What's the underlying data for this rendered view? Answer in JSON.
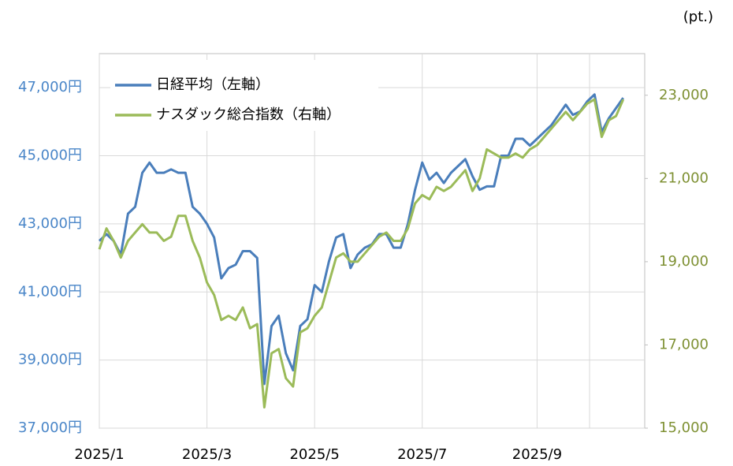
{
  "chart_data": {
    "type": "line",
    "y2label": "(pt.)",
    "categories": [
      "2025/1",
      null,
      null,
      null,
      null,
      null,
      null,
      null,
      null,
      null,
      null,
      null,
      null,
      null,
      null,
      "2025/3",
      null,
      null,
      null,
      null,
      null,
      null,
      null,
      null,
      null,
      null,
      null,
      null,
      null,
      null,
      "2025/5",
      null,
      null,
      null,
      null,
      null,
      null,
      null,
      null,
      null,
      null,
      null,
      null,
      null,
      null,
      "2025/7",
      null,
      null,
      null,
      null,
      null,
      null,
      null,
      null,
      null,
      null,
      null,
      null,
      null,
      null,
      null,
      "2025/9",
      null,
      null,
      null,
      null,
      null,
      null,
      null,
      null,
      null,
      null,
      null,
      null
    ],
    "series": [
      {
        "name": "日経平均（左軸）",
        "color": "#4a7ebb",
        "axis": "y",
        "values": [
          42500,
          42700,
          42500,
          42100,
          43300,
          43500,
          44500,
          44800,
          44500,
          44500,
          44600,
          44500,
          44500,
          43500,
          43300,
          43000,
          42600,
          41400,
          41700,
          41800,
          42200,
          42200,
          42000,
          38300,
          40000,
          40300,
          39200,
          38700,
          40000,
          40200,
          41200,
          41000,
          41900,
          42600,
          42700,
          41700,
          42100,
          42300,
          42400,
          42700,
          42700,
          42300,
          42300,
          43000,
          44000,
          44800,
          44300,
          44500,
          44200,
          44500,
          44700,
          44900,
          44400,
          44000,
          44100,
          44100,
          45000,
          45000,
          45500,
          45500,
          45300,
          45500,
          45700,
          45900,
          46200,
          46500,
          46200,
          46300,
          46600,
          46800,
          45700,
          46100,
          46400,
          46700
        ]
      },
      {
        "name": "ナスダック総合指数（右軸）",
        "color": "#9bbb59",
        "axis": "y2",
        "values": [
          19300,
          19800,
          19500,
          19100,
          19500,
          19700,
          19900,
          19700,
          19700,
          19500,
          19600,
          20100,
          20100,
          19500,
          19100,
          18500,
          18200,
          17600,
          17700,
          17600,
          17900,
          17400,
          17500,
          15500,
          16800,
          16900,
          16200,
          16000,
          17300,
          17400,
          17700,
          17900,
          18500,
          19100,
          19200,
          19000,
          19000,
          19200,
          19400,
          19600,
          19700,
          19500,
          19500,
          19800,
          20400,
          20600,
          20500,
          20800,
          20700,
          20800,
          21000,
          21200,
          20700,
          21000,
          21700,
          21600,
          21500,
          21500,
          21600,
          21500,
          21700,
          21800,
          22000,
          22200,
          22400,
          22600,
          22400,
          22600,
          22800,
          22900,
          22000,
          22400,
          22500,
          22900
        ]
      }
    ],
    "ylim": [
      37000,
      48000
    ],
    "yticks": [
      {
        "value": 37000,
        "label": "37,000円"
      },
      {
        "value": 39000,
        "label": "39,000円"
      },
      {
        "value": 41000,
        "label": "41,000円"
      },
      {
        "value": 43000,
        "label": "43,000円"
      },
      {
        "value": 45000,
        "label": "45,000円"
      },
      {
        "value": 47000,
        "label": "47,000円"
      }
    ],
    "y2lim": [
      15000,
      24000
    ],
    "y2ticks": [
      {
        "value": 15000,
        "label": "15,000"
      },
      {
        "value": 17000,
        "label": "17,000"
      },
      {
        "value": 19000,
        "label": "19,000"
      },
      {
        "value": 21000,
        "label": "21,000"
      },
      {
        "value": 23000,
        "label": "23,000"
      }
    ],
    "ytick_color": "#4a86c8",
    "y2tick_color": "#7f9134",
    "grid": true
  }
}
